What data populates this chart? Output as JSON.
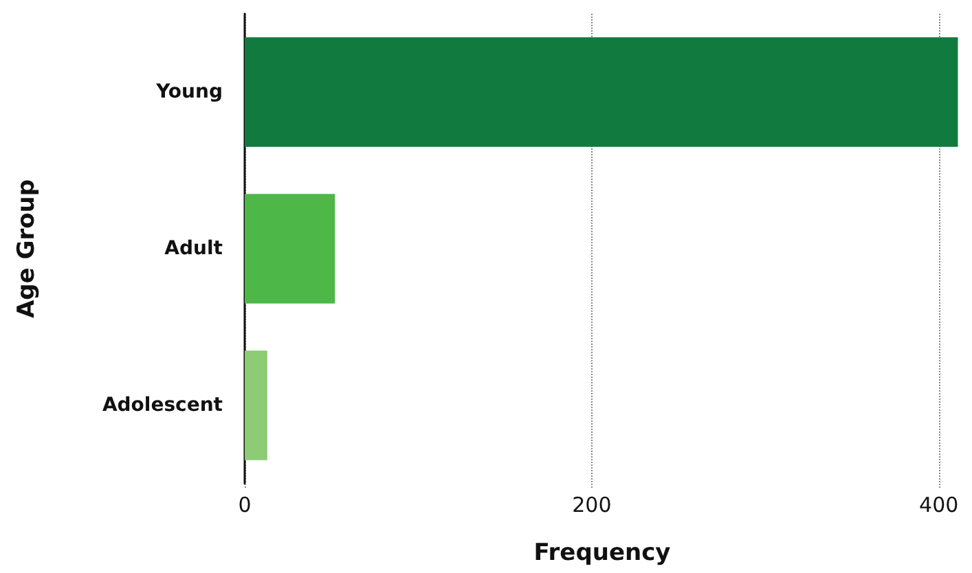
{
  "chart_data": {
    "type": "bar",
    "orientation": "horizontal",
    "categories": [
      "Young",
      "Adult",
      "Adolescent"
    ],
    "values": [
      411,
      52,
      13
    ],
    "colors": [
      "#117a3e",
      "#4db848",
      "#8ccc74"
    ],
    "xlabel": "Frequency",
    "ylabel": "Age Group",
    "xlim": [
      0,
      412
    ],
    "xticks": [
      0,
      200,
      400
    ],
    "grid": "x"
  }
}
